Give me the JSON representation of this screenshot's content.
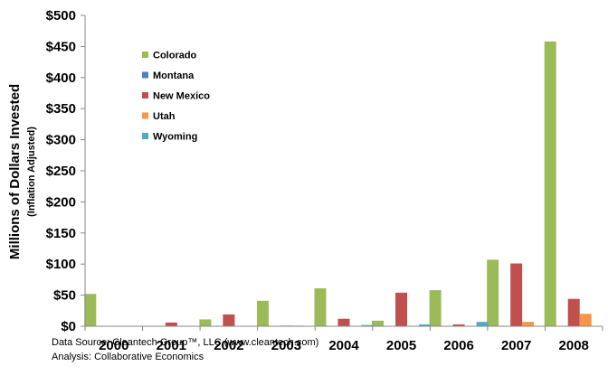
{
  "chart_data": {
    "type": "bar",
    "categories": [
      "2000",
      "2001",
      "2002",
      "2003",
      "2004",
      "2005",
      "2006",
      "2007",
      "2008"
    ],
    "series": [
      {
        "name": "Colorado",
        "color": "#9BBB59",
        "values": [
          52,
          0,
          11,
          41,
          61,
          9,
          58,
          107,
          458
        ]
      },
      {
        "name": "Montana",
        "color": "#4F81BD",
        "values": [
          0,
          0,
          0,
          0,
          0,
          0,
          0,
          0,
          0
        ]
      },
      {
        "name": "New Mexico",
        "color": "#C0504D",
        "values": [
          0,
          6,
          19,
          1,
          12,
          54,
          3,
          101,
          44
        ]
      },
      {
        "name": "Utah",
        "color": "#F79646",
        "values": [
          0,
          0,
          0,
          1,
          0,
          0,
          0,
          7,
          20
        ]
      },
      {
        "name": "Wyoming",
        "color": "#4BACC6",
        "values": [
          0,
          0,
          0,
          0,
          2,
          3,
          7,
          0,
          0
        ]
      }
    ],
    "ylim": [
      0,
      500
    ],
    "yticks": [
      0,
      50,
      100,
      150,
      200,
      250,
      300,
      350,
      400,
      450,
      500
    ],
    "ytick_labels": [
      "$0",
      "$50",
      "$100",
      "$150",
      "$200",
      "$250",
      "$300",
      "$350",
      "$400",
      "$450",
      "$500"
    ],
    "ylabel": "Millions of Dollars Invested",
    "ylabel_sub": "(Inflation Adjusted)",
    "xlabel": "",
    "title": "",
    "legend_position": "top-left-inside",
    "grid": false
  },
  "footnotes": {
    "source": "Data Source: Cleantech Group™, LLC  (www.cleantech.com)",
    "analysis": "Analysis: Collaborative Economics"
  }
}
